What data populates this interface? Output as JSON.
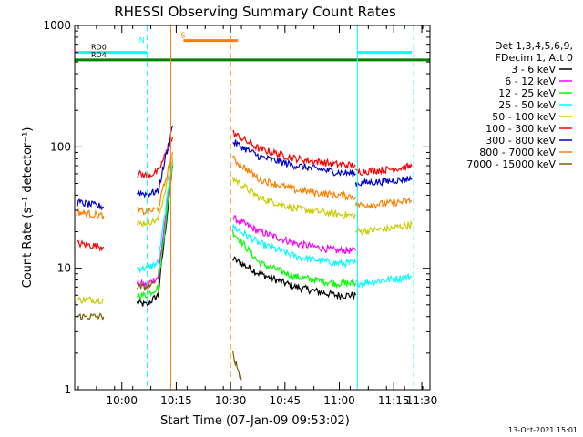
{
  "chart_data": {
    "type": "line",
    "title": "RHESSI Observing Summary Count Rates",
    "xlabel": "Start Time (07-Jan-09 09:53:02)",
    "ylabel": "Count Rate (s⁻¹ detector⁻¹)",
    "yscale": "log",
    "xlim": [
      -6,
      92
    ],
    "ylim": [
      1,
      1000
    ],
    "x_ticks": [
      {
        "m": 7,
        "label": "10:00"
      },
      {
        "m": 22,
        "label": "10:15"
      },
      {
        "m": 37,
        "label": "10:30"
      },
      {
        "m": 52,
        "label": "10:45"
      },
      {
        "m": 67,
        "label": "11:00"
      },
      {
        "m": 82,
        "label": "11:15"
      },
      {
        "m": 97,
        "label": "11:30"
      }
    ],
    "y_ticks": [
      {
        "v": 1,
        "label": "1"
      },
      {
        "v": 10,
        "label": "10"
      },
      {
        "v": 100,
        "label": "100"
      },
      {
        "v": 1000,
        "label": "1000"
      }
    ],
    "legend_header": [
      "Det 1,3,4,5,6,9,",
      "FDecim 1, Att 0"
    ],
    "legend_position": "right",
    "series": [
      {
        "name": "3 - 6 keV",
        "color": "#000000",
        "segments": [
          [
            [
              11.2,
              5.2
            ],
            [
              13.8,
              5.0
            ],
            [
              17,
              6.0
            ],
            [
              21,
              70
            ]
          ],
          [
            [
              37.6,
              12
            ],
            [
              45,
              9.0
            ],
            [
              55,
              7.0
            ],
            [
              66,
              6.0
            ],
            [
              71.5,
              6.0
            ]
          ]
        ]
      },
      {
        "name": "6 - 12 keV",
        "color": "#ff00ff",
        "segments": [
          [
            [
              11.2,
              7.5
            ],
            [
              13.8,
              7.3
            ],
            [
              17,
              8.5
            ],
            [
              21,
              80
            ]
          ],
          [
            [
              37.6,
              26
            ],
            [
              45,
              20
            ],
            [
              55,
              16
            ],
            [
              66,
              14
            ],
            [
              71.5,
              14
            ]
          ]
        ]
      },
      {
        "name": "12 - 25 keV",
        "color": "#00ff00",
        "segments": [
          [
            [
              11.2,
              6.0
            ],
            [
              13.8,
              6.0
            ],
            [
              17,
              7.0
            ],
            [
              21,
              75
            ]
          ],
          [
            [
              37.6,
              20
            ],
            [
              45,
              11
            ],
            [
              55,
              8.5
            ],
            [
              66,
              7.5
            ],
            [
              71.5,
              7.5
            ]
          ]
        ]
      },
      {
        "name": "25 - 50 keV",
        "color": "#00ffff",
        "segments": [
          [
            [
              11.2,
              10
            ],
            [
              13.8,
              10
            ],
            [
              17,
              11
            ],
            [
              21,
              80
            ]
          ],
          [
            [
              37.6,
              22
            ],
            [
              45,
              16
            ],
            [
              55,
              12.5
            ],
            [
              66,
              11
            ],
            [
              71.5,
              11
            ]
          ],
          [
            [
              71.5,
              7.5
            ],
            [
              80,
              8.0
            ],
            [
              87,
              8.5
            ]
          ]
        ]
      },
      {
        "name": "50 - 100 keV",
        "color": "#cccc00",
        "segments": [
          [
            [
              -5.5,
              5.5
            ],
            [
              -1,
              5.5
            ],
            [
              2,
              5.5
            ]
          ],
          [
            [
              11.2,
              23
            ],
            [
              13.8,
              24
            ],
            [
              17,
              25
            ],
            [
              21,
              80
            ]
          ],
          [
            [
              37.6,
              55
            ],
            [
              45,
              38
            ],
            [
              55,
              31
            ],
            [
              66,
              28
            ],
            [
              71.5,
              27
            ]
          ],
          [
            [
              71.5,
              20
            ],
            [
              80,
              21
            ],
            [
              87,
              23
            ]
          ]
        ]
      },
      {
        "name": "100 - 300 keV",
        "color": "#ff0000",
        "segments": [
          [
            [
              -5.5,
              16
            ],
            [
              2,
              15
            ]
          ],
          [
            [
              11.2,
              60
            ],
            [
              13.8,
              58
            ],
            [
              17,
              62
            ],
            [
              21,
              120
            ]
          ],
          [
            [
              37.6,
              130
            ],
            [
              45,
              96
            ],
            [
              55,
              80
            ],
            [
              66,
              72
            ],
            [
              71.5,
              70
            ]
          ],
          [
            [
              71.5,
              62
            ],
            [
              80,
              65
            ],
            [
              87,
              69
            ]
          ]
        ]
      },
      {
        "name": "300 - 800 keV",
        "color": "#0000cc",
        "segments": [
          [
            [
              -5.5,
              35
            ],
            [
              2,
              32
            ]
          ],
          [
            [
              11.2,
              42
            ],
            [
              13.8,
              41
            ],
            [
              17,
              43
            ],
            [
              21,
              150
            ]
          ],
          [
            [
              37.6,
              110
            ],
            [
              45,
              83
            ],
            [
              55,
              70
            ],
            [
              66,
              62
            ],
            [
              71.5,
              60
            ]
          ],
          [
            [
              71.5,
              50
            ],
            [
              80,
              52
            ],
            [
              87,
              55
            ]
          ]
        ]
      },
      {
        "name": "800 - 7000 keV",
        "color": "#ff8000",
        "segments": [
          [
            [
              -5.5,
              29
            ],
            [
              2,
              27
            ]
          ],
          [
            [
              11.2,
              30
            ],
            [
              13.8,
              29
            ],
            [
              17,
              31
            ],
            [
              21,
              90
            ]
          ],
          [
            [
              37.6,
              80
            ],
            [
              45,
              54
            ],
            [
              55,
              44
            ],
            [
              66,
              40
            ],
            [
              71.5,
              39
            ]
          ],
          [
            [
              71.5,
              33
            ],
            [
              80,
              34
            ],
            [
              87,
              36
            ]
          ]
        ]
      },
      {
        "name": "7000 - 15000 keV",
        "color": "#806000",
        "segments": [
          [
            [
              -5.5,
              4.0
            ],
            [
              2,
              4.0
            ]
          ],
          [
            [
              11.2,
              7.0
            ],
            [
              13.8,
              7.0
            ],
            [
              16,
              7.5
            ]
          ],
          [
            [
              37.6,
              2.0
            ],
            [
              40,
              1.2
            ]
          ]
        ]
      }
    ],
    "annotations": [
      {
        "type": "bar",
        "label": "RD0",
        "color": "#00ffff",
        "y": 600,
        "segments": [
          [
            -6,
            14
          ],
          [
            72,
            87
          ]
        ]
      },
      {
        "type": "bar",
        "label": "S",
        "color": "#ff8000",
        "y": 750,
        "segments": [
          [
            24,
            39
          ]
        ]
      },
      {
        "type": "bar",
        "label": "RD4",
        "color": "#008000",
        "y": 520,
        "segments": [
          [
            -6,
            92
          ]
        ]
      },
      {
        "type": "vline",
        "label": "N",
        "color": "#00ffff",
        "x": 14
      },
      {
        "type": "vline",
        "color": "#00ffff",
        "x": 87.5
      },
      {
        "type": "vline",
        "color": "#ff8000",
        "x": 37
      },
      {
        "type": "vline",
        "color": "#00ffff",
        "x": 72,
        "solid": true
      },
      {
        "type": "vline",
        "color": "#ff8000",
        "x": 20.5,
        "solid": true
      }
    ]
  },
  "footer_date": "13-Oct-2021 15:01"
}
